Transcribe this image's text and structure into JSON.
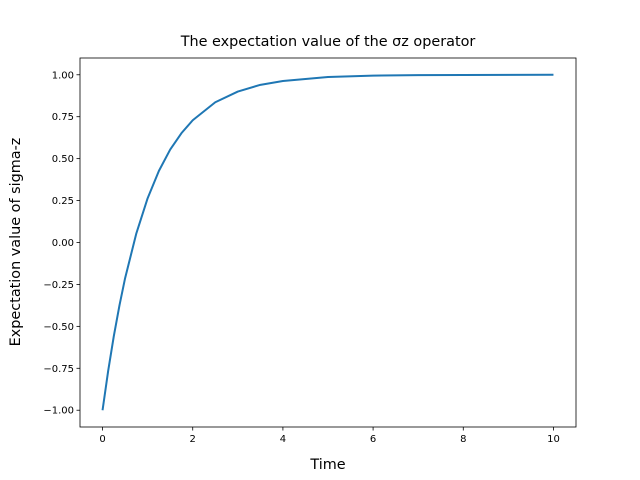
{
  "chart_data": {
    "type": "line",
    "title": "The expectation value of the σz operator",
    "x_label": "Time",
    "y_label": "Expectation value of sigma-z",
    "series": [
      {
        "color": "#1f77b4",
        "x": [
          0,
          0.125,
          0.25,
          0.375,
          0.5,
          0.75,
          1,
          1.25,
          1.5,
          1.75,
          2,
          2.5,
          3,
          3.5,
          4,
          5,
          6,
          7,
          8,
          10
        ],
        "values": [
          -1,
          -0.765,
          -0.558,
          -0.375,
          -0.213,
          0.055,
          0.264,
          0.427,
          0.554,
          0.652,
          0.729,
          0.836,
          0.9,
          0.94,
          0.963,
          0.987,
          0.995,
          0.998,
          0.999,
          1.0
        ]
      }
    ],
    "xlim": [
      -0.5,
      10.5
    ],
    "ylim": [
      -1.1,
      1.1
    ],
    "xticks": [
      0,
      2,
      4,
      6,
      8,
      10
    ],
    "yticks": [
      {
        "value": -1,
        "label": "−1.00"
      },
      {
        "value": -0.75,
        "label": "−0.75"
      },
      {
        "value": -0.5,
        "label": "−0.50"
      },
      {
        "value": -0.25,
        "label": "−0.25"
      },
      {
        "value": 0,
        "label": "0.00"
      },
      {
        "value": 0.25,
        "label": "0.25"
      },
      {
        "value": 0.5,
        "label": "0.50"
      },
      {
        "value": 0.75,
        "label": "0.75"
      },
      {
        "value": 1,
        "label": "1.00"
      }
    ]
  }
}
